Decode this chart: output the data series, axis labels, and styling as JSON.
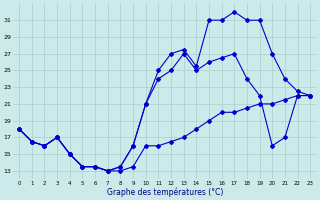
{
  "title": "Graphe des températures (°C)",
  "bg_color": "#cceaea",
  "grid_color": "#aacece",
  "line_color": "#0000cc",
  "yticks": [
    13,
    15,
    17,
    19,
    21,
    23,
    25,
    27,
    29,
    31
  ],
  "xticks": [
    0,
    1,
    2,
    3,
    4,
    5,
    6,
    7,
    8,
    9,
    10,
    11,
    12,
    13,
    14,
    15,
    16,
    17,
    18,
    19,
    20,
    21,
    22,
    23
  ],
  "xlim": [
    -0.5,
    23.5
  ],
  "ylim": [
    12.0,
    33.0
  ],
  "series1_x": [
    0,
    1,
    2,
    3,
    4,
    5,
    6,
    7,
    8,
    9,
    10,
    11,
    12,
    13,
    14,
    15,
    16,
    17,
    18,
    19,
    20,
    21,
    22,
    23
  ],
  "series1_y": [
    18,
    16.5,
    16,
    17,
    15,
    13.5,
    13.5,
    13,
    13,
    13.5,
    16,
    16,
    16.5,
    17,
    18,
    19,
    20,
    20,
    20.5,
    21,
    21,
    21.5,
    22,
    22
  ],
  "series2_x": [
    0,
    1,
    2,
    3,
    4,
    5,
    6,
    7,
    8,
    9,
    10,
    11,
    12,
    13,
    14,
    15,
    16,
    17,
    18,
    19,
    20,
    21,
    22,
    23
  ],
  "series2_y": [
    18,
    16.5,
    16,
    17,
    15,
    13.5,
    13.5,
    13,
    13.5,
    16,
    21,
    24,
    25,
    27,
    25,
    26,
    26.5,
    27,
    24,
    22,
    16,
    17,
    22,
    22
  ],
  "series3_x": [
    0,
    1,
    2,
    3,
    4,
    5,
    6,
    7,
    8,
    9,
    10,
    11,
    12,
    13,
    14,
    15,
    16,
    17,
    18,
    19,
    20,
    21,
    22,
    23
  ],
  "series3_y": [
    18,
    16.5,
    16,
    17,
    15,
    13.5,
    13.5,
    13,
    13.5,
    16,
    21,
    25,
    27,
    27.5,
    25.5,
    31,
    31,
    32,
    31,
    31,
    27,
    24,
    22.5,
    22
  ]
}
